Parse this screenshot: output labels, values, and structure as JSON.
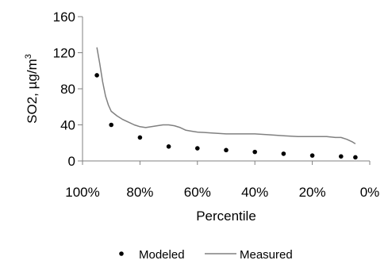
{
  "chart_data": {
    "type": "scatter",
    "xlabel": "Percentile",
    "ylabel_main": "SO2, µg/m",
    "ylabel_sup": "3",
    "ylim": [
      0,
      160
    ],
    "xlim": [
      100,
      0
    ],
    "x_reversed": true,
    "x_ticks": [
      100,
      80,
      60,
      40,
      20,
      0
    ],
    "x_tick_labels": [
      "100%",
      "80%",
      "60%",
      "40%",
      "20%",
      "0%"
    ],
    "y_ticks": [
      0,
      40,
      80,
      120,
      160
    ],
    "y_tick_labels": [
      "0",
      "40",
      "80",
      "120",
      "160"
    ],
    "grid": false,
    "legend_position": "bottom",
    "series": [
      {
        "name": "Modeled",
        "kind": "points",
        "color": "#000000",
        "x": [
          95,
          90,
          80,
          70,
          60,
          50,
          40,
          30,
          20,
          10,
          5
        ],
        "y": [
          95,
          40,
          26,
          16,
          14,
          12,
          10,
          8,
          6,
          5,
          4
        ]
      },
      {
        "name": "Measured",
        "kind": "line",
        "color": "#808080",
        "x": [
          95,
          94,
          93,
          92,
          91,
          90,
          88,
          86,
          84,
          82,
          80,
          78,
          76,
          74,
          72,
          70,
          68,
          66,
          64,
          62,
          60,
          55,
          50,
          45,
          40,
          35,
          30,
          25,
          20,
          15,
          12,
          10,
          8,
          6,
          5
        ],
        "y": [
          126,
          108,
          88,
          72,
          62,
          55,
          50,
          46,
          43,
          40,
          38,
          37,
          38,
          39,
          40,
          40,
          39,
          37,
          34,
          33,
          32,
          31,
          30,
          30,
          30,
          29,
          28,
          27,
          27,
          27,
          26,
          26,
          24,
          21,
          19
        ]
      }
    ]
  }
}
